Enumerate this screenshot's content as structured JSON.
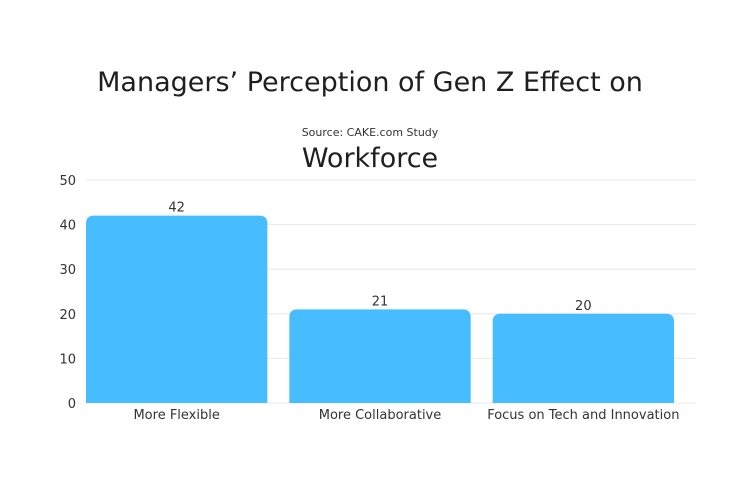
{
  "chart_data": {
    "type": "bar",
    "title_lines": [
      "Managers’ Perception of Gen Z Effect on",
      "Workforce"
    ],
    "subtitle": "Source: CAKE.com Study",
    "categories": [
      "More Flexible",
      "More Collaborative",
      "Focus on Tech and Innovation"
    ],
    "values": [
      42,
      21,
      20
    ],
    "data_labels": [
      "42",
      "21",
      "20"
    ],
    "yticks": [
      0,
      10,
      20,
      30,
      40,
      50
    ],
    "ylim": [
      0,
      50
    ],
    "xlabel": "",
    "ylabel": "",
    "grid": true,
    "bar_color": "#47BCFF",
    "grid_color": "#E8E8E8"
  }
}
